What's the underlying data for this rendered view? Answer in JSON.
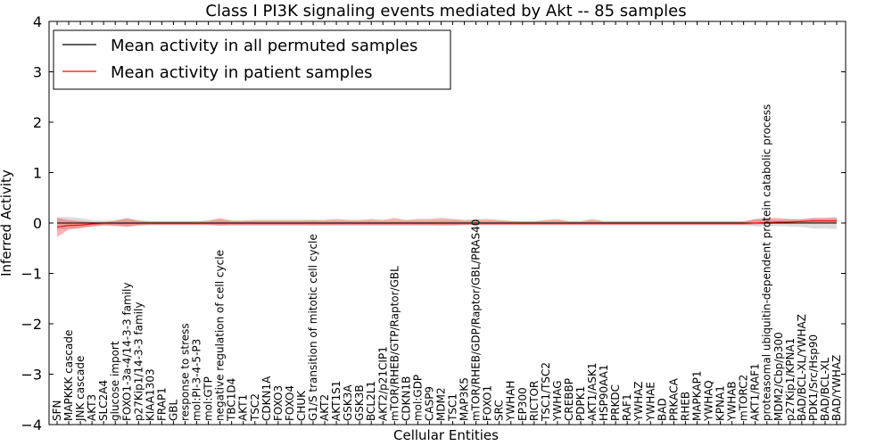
{
  "chart_data": {
    "type": "line",
    "title": "Class I PI3K signaling events mediated by Akt -- 85 samples",
    "xlabel": "Cellular Entities",
    "ylabel": "Inferred Activity",
    "ylim": [
      -4,
      4
    ],
    "yticks": [
      -4,
      -3,
      -2,
      -1,
      0,
      1,
      2,
      3,
      4
    ],
    "ytick_labels": [
      "−4",
      "−3",
      "−2",
      "−1",
      "0",
      "1",
      "2",
      "3",
      "4"
    ],
    "grid": false,
    "legend_position": "top-left",
    "categories": [
      "SFN",
      "MAPKKK cascade",
      "JNK cascade",
      "AKT3",
      "SLC2A4",
      "glucose import",
      "FOXO1-3a-4/14-3-3 family",
      "p27Kip1/14-3-3 family",
      "KIAA1303",
      "FRAP1",
      "GBL",
      "response to stress",
      "mol:PI-3-4-5-P3",
      "mol:GTP",
      "negative regulation of cell cycle",
      "TBC1D4",
      "AKT1",
      "TSC2",
      "CDKN1A",
      "FOXO3",
      "FOXO4",
      "CHUK",
      "G1/S transition of mitotic cell cycle",
      "AKT2",
      "AKT1S1",
      "GSK3A",
      "GSK3B",
      "BCL2L1",
      "AKT2/p21CIP1",
      "mTOR/RHEB/GTP/Raptor/GBL",
      "CDKN1B",
      "mol:GDP",
      "CASP9",
      "MDM2",
      "TSC1",
      "MAP3K5",
      "mTOR/RHEB/GDP/Raptor/GBL/PRAS40",
      "FOXO1",
      "SRC",
      "YWHAH",
      "EP300",
      "RICTOR",
      "TSC1/TSC2",
      "YWHAG",
      "CREBBP",
      "PDPK1",
      "AKT1/ASK1",
      "HSP90AA1",
      "PRKDC",
      "RAF1",
      "YWHAZ",
      "YWHAE",
      "BAD",
      "PRKACA",
      "RHEB",
      "MAPKAP1",
      "YWHAQ",
      "KPNA1",
      "YWHAB",
      "mTORC2",
      "AKT1/RAF1",
      "proteasomal ubiquitin-dependent protein catabolic process",
      "MDM2/Cbp/p300",
      "p27Kip1/KPNA1",
      "BAD/BCL-XL/YWHAZ",
      "PDK1/Src/Hsp90",
      "BAD/BCL-XL",
      "BAD/YWHAZ"
    ],
    "series": [
      {
        "name": "Mean activity in all permuted samples",
        "color": "#000000",
        "values": [
          0.0,
          0.0,
          0.0,
          0.0,
          0.0,
          0.0,
          0.0,
          0.0,
          0.0,
          0.0,
          0.0,
          0.0,
          0.0,
          0.0,
          0.0,
          0.0,
          0.0,
          0.0,
          0.0,
          0.0,
          0.0,
          0.0,
          0.0,
          0.0,
          0.0,
          0.0,
          0.0,
          0.0,
          0.0,
          0.0,
          0.0,
          0.0,
          0.0,
          0.0,
          0.0,
          0.0,
          0.0,
          0.0,
          0.0,
          0.0,
          0.0,
          0.0,
          0.0,
          0.0,
          0.0,
          0.0,
          0.0,
          0.0,
          0.0,
          0.0,
          0.0,
          0.0,
          0.0,
          0.0,
          0.0,
          0.0,
          0.0,
          0.0,
          0.0,
          0.0,
          0.0,
          0.0,
          0.0,
          0.0,
          0.0,
          0.0,
          0.0,
          0.0
        ],
        "band_lower": [
          -0.13,
          -0.12,
          -0.1,
          -0.07,
          -0.05,
          -0.05,
          -0.08,
          -0.05,
          -0.04,
          -0.04,
          -0.04,
          -0.04,
          -0.04,
          -0.04,
          -0.06,
          -0.04,
          -0.04,
          -0.04,
          -0.04,
          -0.04,
          -0.04,
          -0.04,
          -0.05,
          -0.04,
          -0.04,
          -0.04,
          -0.04,
          -0.04,
          -0.04,
          -0.04,
          -0.04,
          -0.04,
          -0.04,
          -0.05,
          -0.05,
          -0.04,
          -0.04,
          -0.04,
          -0.04,
          -0.04,
          -0.04,
          -0.04,
          -0.04,
          -0.04,
          -0.04,
          -0.04,
          -0.04,
          -0.04,
          -0.04,
          -0.04,
          -0.04,
          -0.04,
          -0.04,
          -0.04,
          -0.04,
          -0.04,
          -0.04,
          -0.04,
          -0.04,
          -0.04,
          -0.07,
          -0.07,
          -0.06,
          -0.07,
          -0.08,
          -0.11,
          -0.11,
          -0.12
        ],
        "band_upper": [
          0.12,
          0.12,
          0.1,
          0.06,
          0.05,
          0.05,
          0.08,
          0.05,
          0.04,
          0.04,
          0.04,
          0.04,
          0.04,
          0.04,
          0.06,
          0.04,
          0.04,
          0.04,
          0.04,
          0.04,
          0.04,
          0.04,
          0.05,
          0.04,
          0.04,
          0.04,
          0.04,
          0.04,
          0.04,
          0.04,
          0.04,
          0.04,
          0.04,
          0.05,
          0.05,
          0.04,
          0.04,
          0.04,
          0.04,
          0.04,
          0.04,
          0.04,
          0.04,
          0.04,
          0.04,
          0.04,
          0.04,
          0.04,
          0.04,
          0.04,
          0.04,
          0.04,
          0.04,
          0.04,
          0.04,
          0.04,
          0.04,
          0.04,
          0.04,
          0.04,
          0.07,
          0.07,
          0.06,
          0.07,
          0.08,
          0.11,
          0.11,
          0.12
        ]
      },
      {
        "name": "Mean activity in patient samples",
        "color": "#ff0000",
        "values": [
          -0.08,
          -0.05,
          -0.04,
          -0.02,
          -0.01,
          -0.01,
          -0.01,
          -0.01,
          -0.01,
          -0.01,
          -0.01,
          -0.01,
          -0.01,
          -0.01,
          -0.01,
          -0.01,
          -0.01,
          -0.01,
          -0.01,
          -0.01,
          -0.01,
          -0.01,
          -0.01,
          -0.01,
          -0.01,
          -0.01,
          -0.01,
          -0.01,
          -0.01,
          -0.01,
          -0.01,
          -0.01,
          -0.01,
          -0.01,
          -0.01,
          -0.01,
          -0.01,
          -0.01,
          -0.01,
          -0.01,
          -0.01,
          -0.01,
          -0.01,
          -0.01,
          -0.01,
          -0.01,
          -0.01,
          -0.01,
          -0.01,
          -0.01,
          -0.01,
          -0.01,
          -0.01,
          -0.01,
          -0.01,
          -0.01,
          -0.01,
          -0.01,
          -0.01,
          -0.01,
          0.0,
          0.01,
          0.02,
          0.02,
          0.03,
          0.04,
          0.04,
          0.04
        ],
        "band_lower": [
          -0.28,
          -0.13,
          -0.1,
          -0.07,
          -0.05,
          -0.06,
          -0.07,
          -0.05,
          -0.04,
          -0.04,
          -0.04,
          -0.04,
          -0.04,
          -0.04,
          -0.05,
          -0.05,
          -0.05,
          -0.05,
          -0.05,
          -0.05,
          -0.05,
          -0.05,
          -0.05,
          -0.05,
          -0.05,
          -0.05,
          -0.05,
          -0.05,
          -0.05,
          -0.05,
          -0.05,
          -0.05,
          -0.05,
          -0.05,
          -0.05,
          -0.04,
          -0.04,
          -0.04,
          -0.04,
          -0.04,
          -0.04,
          -0.04,
          -0.04,
          -0.04,
          -0.04,
          -0.04,
          -0.04,
          -0.04,
          -0.04,
          -0.04,
          -0.04,
          -0.04,
          -0.04,
          -0.04,
          -0.04,
          -0.04,
          -0.04,
          -0.04,
          -0.04,
          -0.04,
          -0.03,
          -0.02,
          -0.01,
          -0.01,
          0.0,
          0.0,
          0.0,
          0.0
        ],
        "band_upper": [
          0.1,
          0.06,
          0.04,
          0.02,
          0.02,
          0.05,
          0.1,
          0.05,
          0.03,
          0.03,
          0.03,
          0.03,
          0.03,
          0.05,
          0.1,
          0.05,
          0.05,
          0.06,
          0.06,
          0.06,
          0.06,
          0.06,
          0.06,
          0.06,
          0.08,
          0.06,
          0.06,
          0.08,
          0.06,
          0.1,
          0.06,
          0.08,
          0.08,
          0.1,
          0.08,
          0.06,
          0.07,
          0.08,
          0.06,
          0.04,
          0.03,
          0.03,
          0.06,
          0.08,
          0.03,
          0.03,
          0.08,
          0.03,
          0.03,
          0.03,
          0.03,
          0.03,
          0.03,
          0.03,
          0.03,
          0.03,
          0.03,
          0.03,
          0.03,
          0.03,
          0.08,
          0.1,
          0.1,
          0.08,
          0.07,
          0.09,
          0.09,
          0.1
        ]
      }
    ]
  }
}
